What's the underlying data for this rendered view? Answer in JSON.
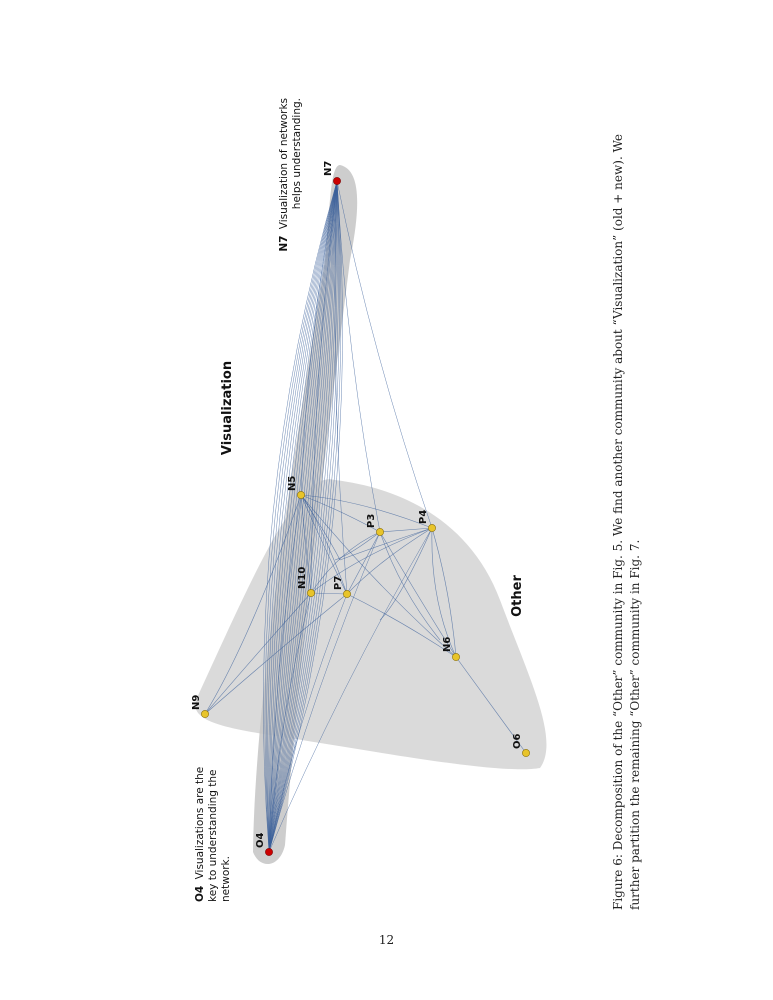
{
  "figure": {
    "community_labels": {
      "visualization": "Visualization",
      "other": "Other"
    },
    "nodes": [
      {
        "id": "N7",
        "label": "N7",
        "color": "#cc0000"
      },
      {
        "id": "O4",
        "label": "O4",
        "color": "#cc0000"
      },
      {
        "id": "N5",
        "label": "N5",
        "color": "#e8c42a"
      },
      {
        "id": "P3",
        "label": "P3",
        "color": "#e8c42a"
      },
      {
        "id": "P4",
        "label": "P4",
        "color": "#e8c42a"
      },
      {
        "id": "N10",
        "label": "N10",
        "color": "#e8c42a"
      },
      {
        "id": "P7",
        "label": "P7",
        "color": "#e8c42a"
      },
      {
        "id": "N6",
        "label": "N6",
        "color": "#e8c42a"
      },
      {
        "id": "N9",
        "label": "N9",
        "color": "#e8c42a"
      },
      {
        "id": "O6",
        "label": "O6",
        "color": "#e8c42a"
      }
    ],
    "annotations": {
      "n7": {
        "key": "N7",
        "line1": "Visualization of networks",
        "line2": "helps understanding."
      },
      "o4": {
        "key": "O4",
        "line1": "Visualizations are the",
        "line2": "key to understanding the",
        "line3": "network."
      }
    },
    "colors": {
      "hull": "#d4d4d4",
      "edge": "#3a5f9a"
    }
  },
  "caption": "Figure 6: Decomposition of the “Other” community in Fig. 5. We find another community about “Visualization” (old + new). We further partition the remaining “Other” community in Fig. 7.",
  "page_number": "12"
}
